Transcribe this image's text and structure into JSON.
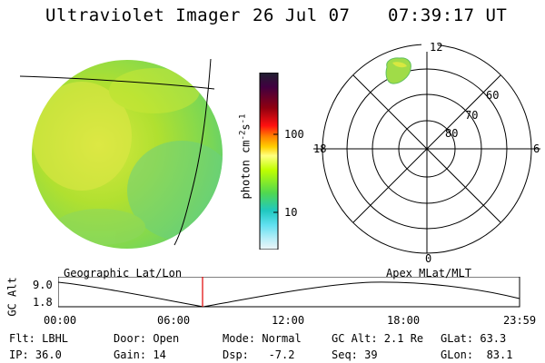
{
  "header": {
    "title": "Ultraviolet Imager",
    "date": "26 Jul 07",
    "time": "07:39:17 UT"
  },
  "colorbar": {
    "unit_label": "photon cm",
    "unit_sup1": "-2",
    "unit_s": "s",
    "unit_sup2": "-1",
    "tick_100": "100",
    "tick_10": "10",
    "colors_top_to_bottom": [
      "#202030",
      "#400040",
      "#800000",
      "#c00010",
      "#ff0000",
      "#ff8000",
      "#ffc000",
      "#ffff60",
      "#c0ff00",
      "#60e000",
      "#20d060",
      "#20c0c0",
      "#60e0f0",
      "#b0f0f8",
      "#e8f4f8"
    ]
  },
  "polar": {
    "mlt_12": "12",
    "mlt_18": "18",
    "mlt_6": "6",
    "mlt_0": "0",
    "lat_60": "60",
    "lat_70": "70",
    "lat_80": "80"
  },
  "labels": {
    "left_panel": "Geographic Lat/Lon",
    "right_panel": "Apex MLat/MLT"
  },
  "altitude_plot": {
    "ylabel": "GC Alt",
    "y_max": "9.0",
    "y_min": "1.8",
    "x_ticks": [
      "00:00",
      "06:00",
      "12:00",
      "18:00",
      "23:59"
    ],
    "marker_time": "07:39",
    "marker_color": "#e00000"
  },
  "status": {
    "filter": "Flt: LBHL",
    "door": "Door: Open",
    "mode": "Mode: Normal",
    "gc_alt": "GC Alt: 2.1 Re",
    "glat": "GLat: 63.3",
    "ip": "IP: 36.0",
    "gain": "Gain: 14",
    "dsp": "Dsp:   -7.2",
    "seq": "Seq: 39",
    "glon": "GLon:  83.1"
  },
  "colors": {
    "image_fill": "#a8e030",
    "image_fill_2": "#7dd860",
    "image_fill_3": "#d8e840"
  }
}
